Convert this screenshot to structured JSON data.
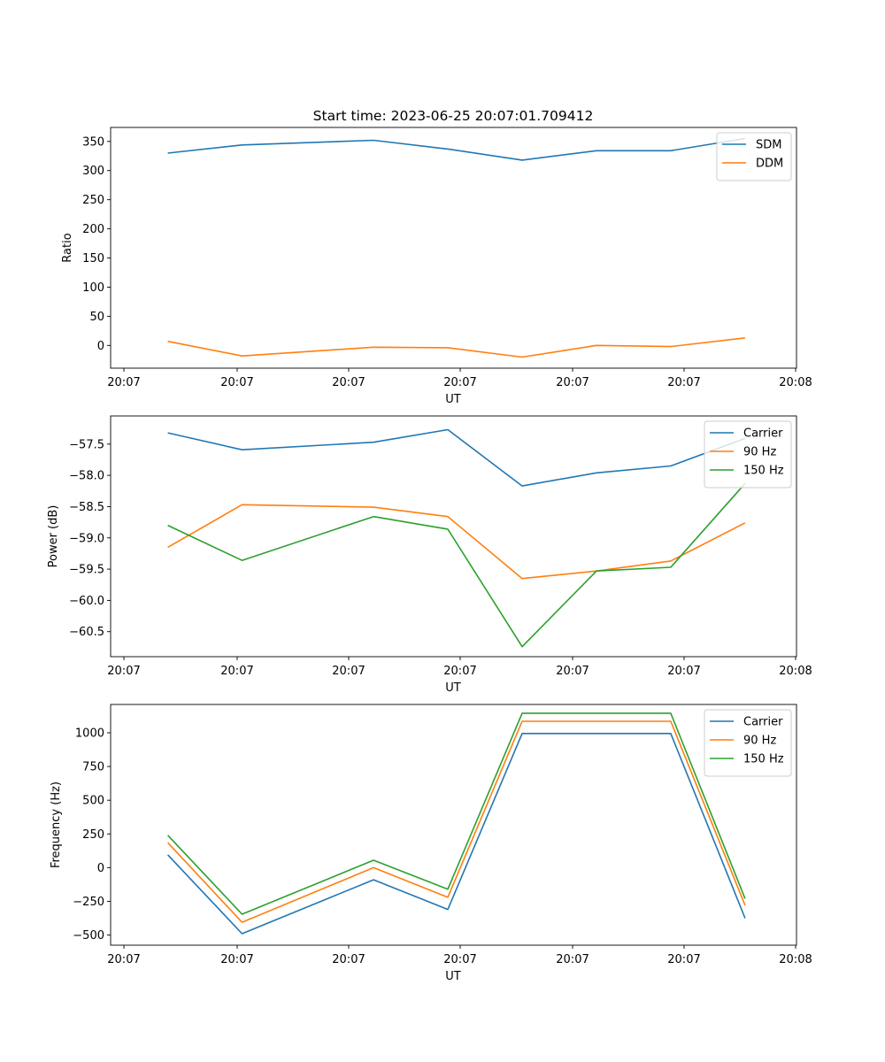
{
  "figure": {
    "title": "Start time: 2023-06-25 20:07:01.709412"
  },
  "chart_data": [
    {
      "type": "line",
      "title": "Start time: 2023-06-25 20:07:01.709412",
      "xlabel": "UT",
      "ylabel": "Ratio",
      "x_ticks": [
        "20:07",
        "20:07",
        "20:07",
        "20:07",
        "20:07",
        "20:07",
        "20:08"
      ],
      "y_ticks": [
        0,
        50,
        100,
        150,
        200,
        250,
        300,
        350
      ],
      "xlim": [
        -0.5,
        5.5
      ],
      "ylim": [
        -39,
        374
      ],
      "x": [
        0.0,
        0.65,
        1.8,
        2.45,
        3.1,
        3.75,
        4.4,
        5.05
      ],
      "grid": false,
      "legend": "upper right",
      "series": [
        {
          "name": "SDM",
          "color": "#1f77b4",
          "values": [
            330,
            344,
            352,
            337,
            318,
            334,
            334,
            355
          ]
        },
        {
          "name": "DDM",
          "color": "#ff7f0e",
          "values": [
            7,
            -18,
            -3,
            -4,
            -20,
            0,
            -2,
            13
          ]
        }
      ]
    },
    {
      "type": "line",
      "title": "",
      "xlabel": "UT",
      "ylabel": "Power (dB)",
      "x_ticks": [
        "20:07",
        "20:07",
        "20:07",
        "20:07",
        "20:07",
        "20:07",
        "20:08"
      ],
      "y_ticks": [
        -57.5,
        -58.0,
        -58.5,
        -59.0,
        -59.5,
        -60.0,
        -60.5
      ],
      "y_tick_labels": [
        "−57.5",
        "−58.0",
        "−58.5",
        "−59.0",
        "−59.5",
        "−60.0",
        "−60.5"
      ],
      "xlim": [
        -0.5,
        5.5
      ],
      "ylim": [
        -60.9,
        -57.05
      ],
      "x": [
        0.0,
        0.65,
        1.8,
        2.45,
        3.1,
        3.75,
        4.4,
        5.05
      ],
      "grid": false,
      "legend": "upper right",
      "series": [
        {
          "name": "Carrier",
          "color": "#1f77b4",
          "values": [
            -57.32,
            -57.59,
            -57.47,
            -57.27,
            -58.17,
            -57.96,
            -57.85,
            -57.41
          ]
        },
        {
          "name": "90 Hz",
          "color": "#ff7f0e",
          "values": [
            -59.15,
            -58.47,
            -58.51,
            -58.66,
            -59.65,
            -59.53,
            -59.37,
            -58.76
          ]
        },
        {
          "name": "150 Hz",
          "color": "#2ca02c",
          "values": [
            -58.8,
            -59.36,
            -58.66,
            -58.86,
            -60.74,
            -59.53,
            -59.47,
            -58.13
          ]
        }
      ]
    },
    {
      "type": "line",
      "title": "",
      "xlabel": "UT",
      "ylabel": "Frequency (Hz)",
      "x_ticks": [
        "20:07",
        "20:07",
        "20:07",
        "20:07",
        "20:07",
        "20:07",
        "20:08"
      ],
      "y_ticks": [
        1000,
        750,
        500,
        250,
        0,
        -250,
        -500
      ],
      "y_tick_labels": [
        "1000",
        "750",
        "500",
        "250",
        "0",
        "−250",
        "−500"
      ],
      "xlim": [
        -0.5,
        5.5
      ],
      "ylim": [
        -575,
        1210
      ],
      "x": [
        0.0,
        0.65,
        1.8,
        2.45,
        3.1,
        3.75,
        4.4,
        5.05
      ],
      "grid": false,
      "legend": "upper right",
      "series": [
        {
          "name": "Carrier",
          "color": "#1f77b4",
          "values": [
            95,
            -490,
            -90,
            -310,
            995,
            995,
            995,
            -375
          ]
        },
        {
          "name": "90 Hz",
          "color": "#ff7f0e",
          "values": [
            185,
            -405,
            0,
            -220,
            1085,
            1085,
            1085,
            -280
          ]
        },
        {
          "name": "150 Hz",
          "color": "#2ca02c",
          "values": [
            240,
            -345,
            55,
            -160,
            1145,
            1145,
            1145,
            -230
          ]
        }
      ]
    }
  ]
}
